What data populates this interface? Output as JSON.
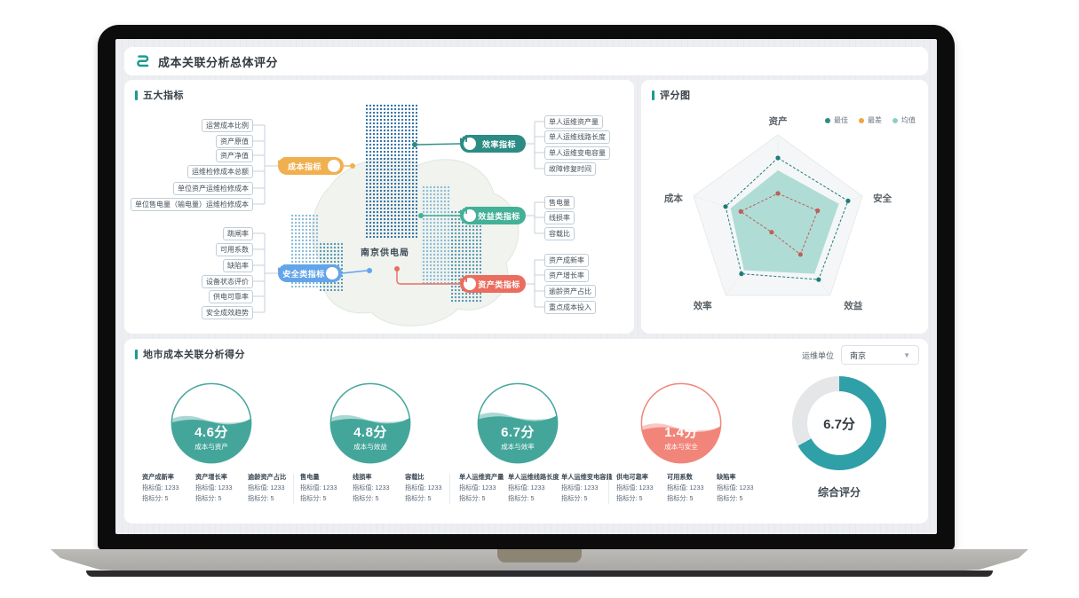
{
  "app": {
    "title": "成本关联分析总体评分"
  },
  "indicators_panel": {
    "title": "五大指标",
    "center_label": "南京供电局",
    "branches": [
      {
        "id": "cost",
        "label": "成本指标",
        "color": "#f0b050",
        "leaves": [
          "运营成本比例",
          "资产原值",
          "资产净值",
          "运维检修成本总额",
          "单位资产运维检修成本",
          "单位售电量（输电量）运维检修成本"
        ]
      },
      {
        "id": "safety",
        "label": "安全类指标",
        "color": "#63a4ea",
        "leaves": [
          "跳闸率",
          "可用系数",
          "缺陷率",
          "设备状态评价",
          "供电可靠率",
          "安全成效趋势"
        ]
      },
      {
        "id": "efficiency",
        "label": "效率指标",
        "color": "#2c8c84",
        "leaves": [
          "单人运维资产量",
          "单人运维线路长度",
          "单人运维变电容量",
          "故障修复时间"
        ]
      },
      {
        "id": "benefit",
        "label": "效益类指标",
        "color": "#43b097",
        "leaves": [
          "售电量",
          "线损率",
          "容载比"
        ]
      },
      {
        "id": "asset",
        "label": "资产类指标",
        "color": "#ea6d5f",
        "leaves": [
          "资产成新率",
          "资产增长率",
          "逾龄资产占比",
          "重点成本投入"
        ]
      }
    ]
  },
  "radar_panel": {
    "title": "评分图",
    "legend": [
      {
        "label": "最佳",
        "color": "#2e8b84"
      },
      {
        "label": "最差",
        "color": "#f0a545"
      },
      {
        "label": "均值",
        "color": "#8ecfc6"
      }
    ]
  },
  "scores_panel": {
    "title": "地市成本关联分析得分",
    "filter": {
      "label": "运维单位",
      "value": "南京"
    },
    "gauges": [
      {
        "score": "4.6分",
        "label": "成本与资产",
        "color": "#44a69b"
      },
      {
        "score": "4.8分",
        "label": "成本与效益",
        "color": "#44a69b"
      },
      {
        "score": "6.7分",
        "label": "成本与效率",
        "color": "#44a69b"
      },
      {
        "score": "1.4分",
        "label": "成本与安全",
        "color": "#f2857a"
      }
    ],
    "donut": {
      "score": "6.7分",
      "label": "综合评分",
      "color": "#2f9fa8",
      "track": "#e5e6e7"
    },
    "metric_value_label": "指标值",
    "metric_score_label": "指标分",
    "metric_groups": [
      {
        "metrics": [
          {
            "name": "资产成新率",
            "value": "1233",
            "score": "5"
          },
          {
            "name": "资产增长率",
            "value": "1233",
            "score": "5"
          },
          {
            "name": "逾龄资产占比",
            "value": "1233",
            "score": "5"
          }
        ]
      },
      {
        "metrics": [
          {
            "name": "售电量",
            "value": "1233",
            "score": "5"
          },
          {
            "name": "线损率",
            "value": "1233",
            "score": "5"
          },
          {
            "name": "容载比",
            "value": "1233",
            "score": "5"
          }
        ]
      },
      {
        "metrics": [
          {
            "name": "单人运维资产量",
            "value": "1233",
            "score": "5"
          },
          {
            "name": "单人运维线路长度",
            "value": "1233",
            "score": "5"
          },
          {
            "name": "单人运维变电容量",
            "value": "1233",
            "score": "5"
          }
        ]
      },
      {
        "metrics": [
          {
            "name": "供电可靠率",
            "value": "1233",
            "score": "5"
          },
          {
            "name": "可用系数",
            "value": "1233",
            "score": "5"
          },
          {
            "name": "缺陷率",
            "value": "1233",
            "score": "5"
          }
        ]
      }
    ]
  },
  "chart_data": [
    {
      "type": "radar",
      "title": "评分图",
      "categories": [
        "资产",
        "安全",
        "效益",
        "效率",
        "成本"
      ],
      "max": 10,
      "legend_position": "top-right",
      "series": [
        {
          "name": "最佳",
          "values": [
            7.4,
            8.3,
            7.8,
            7.0,
            6.2
          ],
          "color": "#1d7d78",
          "style": "dashed-dots"
        },
        {
          "name": "最差",
          "values": [
            3.4,
            4.7,
            4.3,
            1.2,
            4.4
          ],
          "color": "#bb6157",
          "style": "dashed-dots"
        },
        {
          "name": "均值",
          "values": [
            6.0,
            7.2,
            7.0,
            6.5,
            5.6
          ],
          "color": "#a9d9d3",
          "style": "area"
        }
      ]
    },
    {
      "type": "gauge",
      "unit": "分",
      "max": 10,
      "items": [
        {
          "label": "成本与资产",
          "value": 4.6
        },
        {
          "label": "成本与效益",
          "value": 4.8
        },
        {
          "label": "成本与效率",
          "value": 6.7
        },
        {
          "label": "成本与安全",
          "value": 1.4
        }
      ]
    },
    {
      "type": "donut",
      "label": "综合评分",
      "value": 6.7,
      "max": 10,
      "percent_filled": 67
    }
  ]
}
